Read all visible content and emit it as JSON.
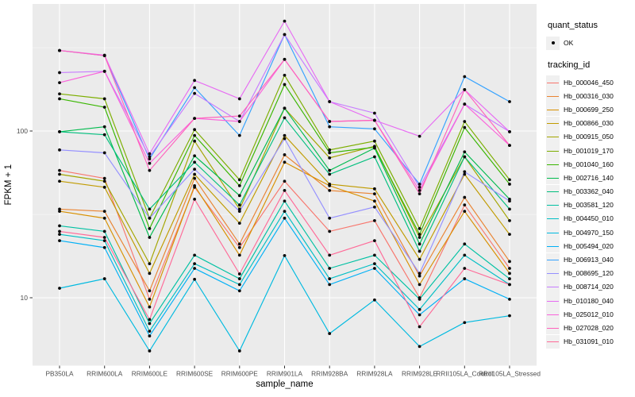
{
  "figure": {
    "xlabel": "sample_name",
    "ylabel": "FPKM + 1",
    "y_tick_labels": [
      "100",
      "10"
    ]
  },
  "legend": {
    "quant_status_title": "quant_status",
    "quant_status_items": [
      {
        "label": "OK",
        "marker": "point-icon"
      }
    ],
    "tracking_title": "tracking_id"
  },
  "colors": {
    "panel_bg": "#EBEBEB",
    "grid_major": "#FFFFFF",
    "grid_minor": "#FFFFFF",
    "tick_label": "#4D4D4D",
    "axis_title": "#000000",
    "point": "#0a0a0a",
    "legend_key_bg": "#F0F0F0"
  },
  "chart_data": {
    "type": "line",
    "x_type": "categorical",
    "y_scale": "log10",
    "ylim": [
      3.9,
      570
    ],
    "y_major_ticks": [
      10,
      100
    ],
    "y_minor_ticks": [
      31.6,
      316
    ],
    "grid": true,
    "legend_position": "right",
    "marker": "black point",
    "title": "",
    "xlabel": "sample_name",
    "ylabel": "FPKM + 1",
    "categories": [
      "PB350LA",
      "RRIM600LA",
      "RRIM600LE",
      "RRIM600SE",
      "RRIM600PE",
      "RRIM901LA",
      "RRIM928BA",
      "RRIM928LA",
      "RRIM928LE",
      "RRII105LA_Control",
      "RRII105LA_Stressed"
    ],
    "series": [
      {
        "name": "Hb_000046_450",
        "color": "#F8766D",
        "values": [
          58,
          52,
          9.8,
          46,
          20,
          50,
          25,
          29,
          10,
          36,
          15
        ]
      },
      {
        "name": "Hb_000316_030",
        "color": "#EA8331",
        "values": [
          34,
          33,
          11,
          52,
          21,
          72,
          44,
          42,
          13.5,
          40,
          16.5
        ]
      },
      {
        "name": "Hb_000699_250",
        "color": "#D89000",
        "values": [
          33,
          30,
          8.8,
          47,
          18,
          65,
          47,
          38,
          12,
          33,
          14
        ]
      },
      {
        "name": "Hb_000866_030",
        "color": "#C09B00",
        "values": [
          50,
          46,
          14,
          55,
          28,
          94,
          48,
          45,
          17,
          55,
          24
        ]
      },
      {
        "name": "Hb_000915_050",
        "color": "#A3A500",
        "values": [
          55,
          50,
          16,
          87,
          34,
          137,
          69,
          81,
          23,
          70,
          29
        ]
      },
      {
        "name": "Hb_001019_170",
        "color": "#7CAE00",
        "values": [
          167,
          156,
          30,
          102,
          51,
          216,
          77,
          87,
          26,
          114,
          51
        ]
      },
      {
        "name": "Hb_001040_160",
        "color": "#39B600",
        "values": [
          156,
          139,
          26,
          94,
          47,
          190,
          74,
          80,
          24,
          105,
          48
        ]
      },
      {
        "name": "Hb_002716_140",
        "color": "#00BB4E",
        "values": [
          99,
          106,
          23,
          71,
          41,
          137,
          58,
          79,
          21,
          75,
          39
        ]
      },
      {
        "name": "Hb_003362_040",
        "color": "#00BF7D",
        "values": [
          99,
          95,
          34,
          65,
          36,
          120,
          55,
          70,
          19,
          70,
          34
        ]
      },
      {
        "name": "Hb_003581_120",
        "color": "#00C1A3",
        "values": [
          27,
          25,
          7,
          18,
          13,
          38,
          15,
          18,
          9.8,
          21,
          13
        ]
      },
      {
        "name": "Hb_004450_010",
        "color": "#00BFC4",
        "values": [
          24,
          22,
          6.3,
          16,
          12,
          33,
          13,
          16,
          8.5,
          18,
          12
        ]
      },
      {
        "name": "Hb_004970_150",
        "color": "#00BAE0",
        "values": [
          11.4,
          13,
          4.8,
          12.9,
          4.8,
          17.9,
          6.1,
          9.7,
          5.1,
          7.1,
          7.8
        ]
      },
      {
        "name": "Hb_005494_020",
        "color": "#00B0F6",
        "values": [
          22,
          20,
          5.9,
          15,
          11,
          30,
          12,
          15,
          7.9,
          13,
          9.8
        ]
      },
      {
        "name": "Hb_006913_040",
        "color": "#35A2FF",
        "values": [
          304,
          283,
          68,
          182,
          94,
          379,
          106,
          103,
          48,
          212,
          150
        ]
      },
      {
        "name": "Hb_008695_120",
        "color": "#9590FF",
        "values": [
          77,
          74,
          30,
          59,
          33,
          90,
          30,
          35,
          14,
          57,
          38
        ]
      },
      {
        "name": "Hb_008714_020",
        "color": "#C77CFF",
        "values": [
          224,
          228,
          70,
          168,
          114,
          379,
          150,
          128,
          46,
          145,
          99
        ]
      },
      {
        "name": "Hb_010180_040",
        "color": "#E76BF3",
        "values": [
          304,
          285,
          73,
          201,
          156,
          456,
          150,
          116,
          93,
          177,
          99
        ]
      },
      {
        "name": "Hb_025012_010",
        "color": "#FA62DB",
        "values": [
          195,
          228,
          64,
          119,
          114,
          269,
          114,
          116,
          44,
          145,
          82
        ]
      },
      {
        "name": "Hb_027028_020",
        "color": "#FF62BC",
        "values": [
          304,
          283,
          58,
          119,
          123,
          269,
          114,
          116,
          42,
          177,
          82
        ]
      },
      {
        "name": "Hb_031091_010",
        "color": "#FF6A98",
        "values": [
          25,
          23,
          7.4,
          39,
          13.9,
          44,
          18,
          22,
          6.7,
          15,
          12
        ]
      }
    ]
  }
}
